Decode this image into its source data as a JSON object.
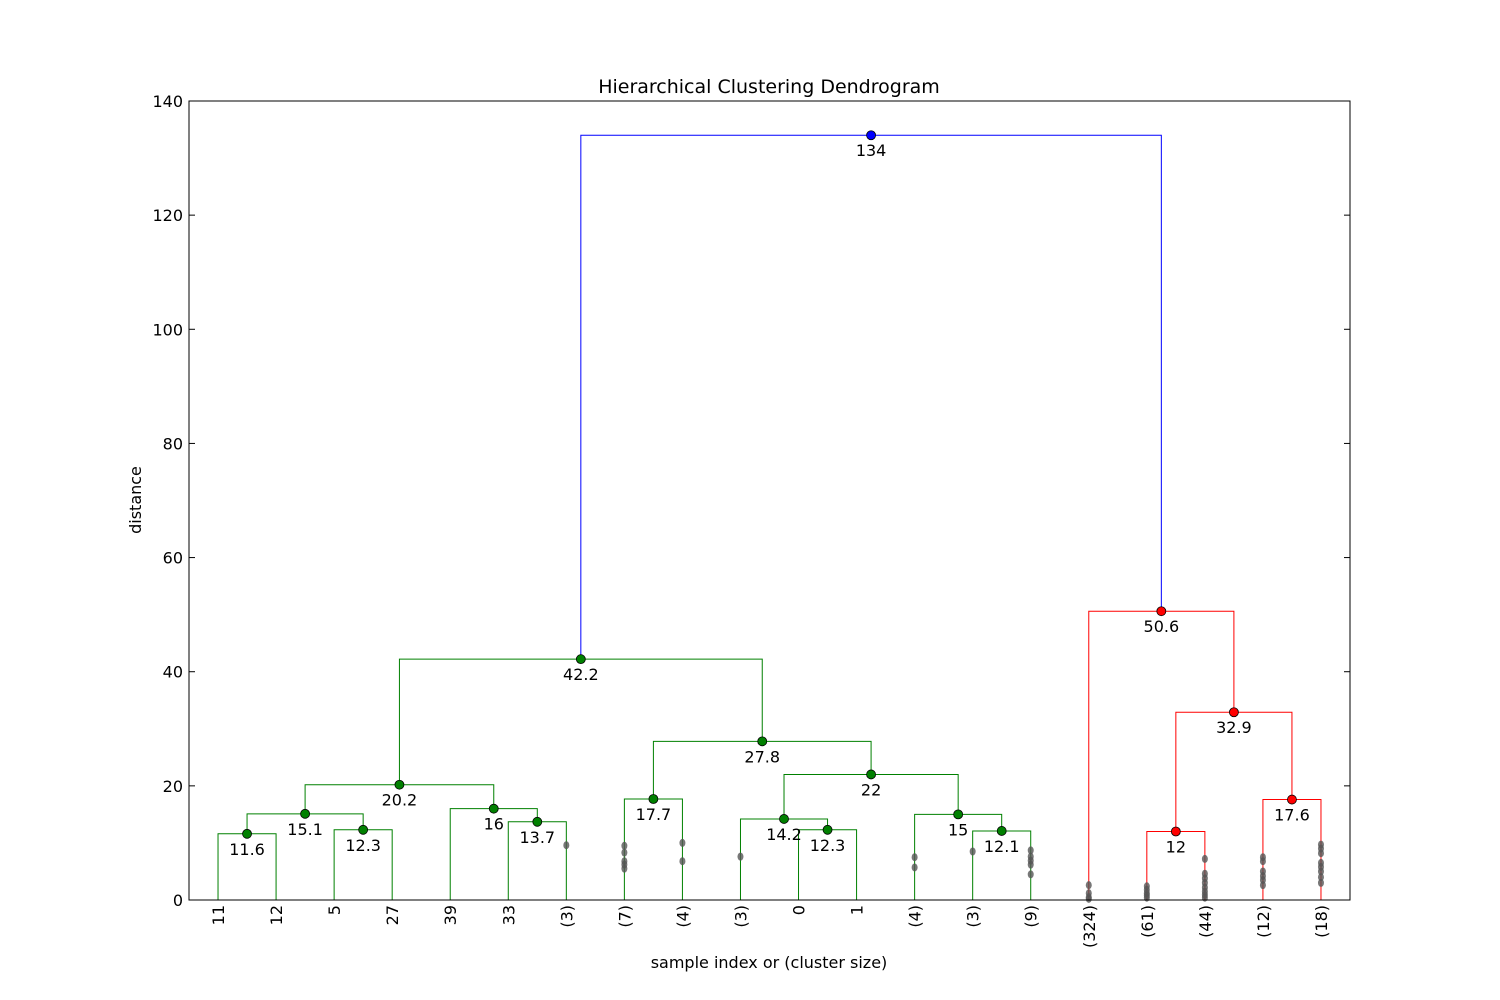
{
  "chart_data": {
    "type": "dendrogram",
    "title": "Hierarchical Clustering Dendrogram",
    "xlabel": "sample index or (cluster size)",
    "ylabel": "distance",
    "ylim": [
      0,
      140
    ],
    "yticks": [
      0,
      20,
      40,
      60,
      80,
      100,
      120,
      140
    ],
    "grid": false,
    "leaves": [
      "11",
      "12",
      "5",
      "27",
      "39",
      "33",
      "(3)",
      "(7)",
      "(4)",
      "(3)",
      "0",
      "1",
      "(4)",
      "(3)",
      "(9)",
      "(324)",
      "(61)",
      "(44)",
      "(12)",
      "(18)"
    ],
    "colors": {
      "cluster_green": "#008000",
      "cluster_red": "#ff0000",
      "root": "#0000ff",
      "truncated_marker": "#555555"
    },
    "merges": [
      {
        "left": 0,
        "right": 1,
        "height": 11.6,
        "color": "#008000",
        "label": "11.6"
      },
      {
        "left": 2,
        "right": 3,
        "height": 12.3,
        "color": "#008000",
        "label": "12.3"
      },
      {
        "left": "m0",
        "right": "m1",
        "height": 15.1,
        "color": "#008000",
        "label": "15.1"
      },
      {
        "left": 5,
        "right": 6,
        "height": 13.7,
        "color": "#008000",
        "label": "13.7"
      },
      {
        "left": 4,
        "right": "m3",
        "height": 16.0,
        "color": "#008000",
        "label": "16"
      },
      {
        "left": "m2",
        "right": "m4",
        "height": 20.2,
        "color": "#008000",
        "label": "20.2"
      },
      {
        "left": 7,
        "right": 8,
        "height": 17.7,
        "color": "#008000",
        "label": "17.7"
      },
      {
        "left": 10,
        "right": 11,
        "height": 12.3,
        "color": "#008000",
        "label": "12.3"
      },
      {
        "left": 9,
        "right": "m7",
        "height": 14.2,
        "color": "#008000",
        "label": "14.2"
      },
      {
        "left": 13,
        "right": 14,
        "height": 12.1,
        "color": "#008000",
        "label": "12.1"
      },
      {
        "left": 12,
        "right": "m9",
        "height": 15.0,
        "color": "#008000",
        "label": "15"
      },
      {
        "left": "m8",
        "right": "m10",
        "height": 22.0,
        "color": "#008000",
        "label": "22"
      },
      {
        "left": "m6",
        "right": "m11",
        "height": 27.8,
        "color": "#008000",
        "label": "27.8"
      },
      {
        "left": "m5",
        "right": "m12",
        "height": 42.2,
        "color": "#008000",
        "label": "42.2"
      },
      {
        "left": 16,
        "right": 17,
        "height": 12.0,
        "color": "#ff0000",
        "label": "12"
      },
      {
        "left": 18,
        "right": 19,
        "height": 17.6,
        "color": "#ff0000",
        "label": "17.6"
      },
      {
        "left": "m14",
        "right": "m15",
        "height": 32.9,
        "color": "#ff0000",
        "label": "32.9"
      },
      {
        "left": 15,
        "right": "m16",
        "height": 50.6,
        "color": "#ff0000",
        "label": "50.6"
      },
      {
        "left": "m13",
        "right": "m17",
        "height": 134.0,
        "color": "#0000ff",
        "label": "134"
      }
    ],
    "truncated_points": [
      {
        "leaf": 6,
        "heights": [
          9.6
        ]
      },
      {
        "leaf": 7,
        "heights": [
          9.5,
          8.3,
          6.8,
          6.2,
          5.5
        ]
      },
      {
        "leaf": 8,
        "heights": [
          10.0,
          6.8
        ]
      },
      {
        "leaf": 9,
        "heights": [
          7.6
        ]
      },
      {
        "leaf": 12,
        "heights": [
          7.5,
          5.7
        ]
      },
      {
        "leaf": 13,
        "heights": [
          8.5
        ]
      },
      {
        "leaf": 14,
        "heights": [
          8.7,
          7.6,
          6.9,
          6.2,
          4.5
        ]
      },
      {
        "leaf": 15,
        "heights": [
          2.6,
          1.2,
          0.5,
          0.2
        ]
      },
      {
        "leaf": 16,
        "heights": [
          2.4,
          1.8,
          1.2,
          0.8,
          0.4
        ]
      },
      {
        "leaf": 17,
        "heights": [
          7.2,
          4.6,
          3.8,
          3.0,
          2.2,
          1.5,
          0.9,
          0.4
        ]
      },
      {
        "leaf": 18,
        "heights": [
          7.5,
          6.8,
          5.0,
          4.2,
          3.5,
          2.6
        ]
      },
      {
        "leaf": 19,
        "heights": [
          9.7,
          9.0,
          8.2,
          6.5,
          5.8,
          5.0,
          4.0,
          3.0
        ]
      }
    ]
  }
}
